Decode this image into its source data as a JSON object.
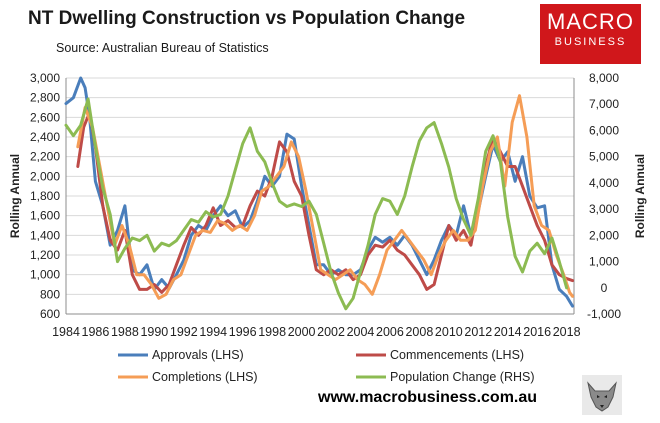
{
  "header": {
    "title": "NT Dwelling Construction vs Population Change",
    "source": "Source: Australian Bureau of Statistics"
  },
  "logo": {
    "line1": "MACRO",
    "line2": "BUSINESS"
  },
  "footer": {
    "website": "www.macrobusiness.com.au"
  },
  "colors": {
    "approvals": "#4a7ebb",
    "commencements": "#be4b48",
    "completions": "#f59d56",
    "population": "#8cbb52",
    "logo_bg": "#d0171b"
  },
  "chart_data": {
    "type": "line",
    "title": "NT Dwelling Construction vs Population Change",
    "ylabel": "Rolling Annual",
    "ylabel_right": "Rolling Annual",
    "ylim": [
      600,
      3000
    ],
    "ylim_right": [
      -1000,
      8000
    ],
    "yticks_left": [
      "3,000",
      "2,800",
      "2,600",
      "2,400",
      "2,200",
      "2,000",
      "1,800",
      "1,600",
      "1,400",
      "1,200",
      "1,000",
      "800",
      "600"
    ],
    "yticks_right": [
      "8,000",
      "7,000",
      "6,000",
      "5,000",
      "4,000",
      "3,000",
      "2,000",
      "1,000",
      "0",
      "-1,000"
    ],
    "xlim": [
      1984,
      2018.5
    ],
    "xticks": [
      "1984",
      "1986",
      "1988",
      "1990",
      "1992",
      "1994",
      "1996",
      "1998",
      "2000",
      "2002",
      "2004",
      "2006",
      "2008",
      "2010",
      "2012",
      "2014",
      "2016",
      "2018"
    ],
    "series": [
      {
        "name": "Approvals (LHS)",
        "axis": "left",
        "key": "approvals",
        "points": [
          [
            1984,
            2740
          ],
          [
            1984.5,
            2800
          ],
          [
            1985,
            3000
          ],
          [
            1985.3,
            2900
          ],
          [
            1985.6,
            2600
          ],
          [
            1986,
            1950
          ],
          [
            1986.5,
            1700
          ],
          [
            1987,
            1300
          ],
          [
            1987.5,
            1450
          ],
          [
            1988,
            1700
          ],
          [
            1988.5,
            1050
          ],
          [
            1989,
            1000
          ],
          [
            1989.5,
            1100
          ],
          [
            1990,
            850
          ],
          [
            1990.5,
            950
          ],
          [
            1991,
            860
          ],
          [
            1991.5,
            1000
          ],
          [
            1992,
            1150
          ],
          [
            1992.5,
            1400
          ],
          [
            1993,
            1500
          ],
          [
            1993.5,
            1450
          ],
          [
            1994,
            1600
          ],
          [
            1994.5,
            1700
          ],
          [
            1995,
            1600
          ],
          [
            1995.5,
            1650
          ],
          [
            1996,
            1480
          ],
          [
            1996.5,
            1550
          ],
          [
            1997,
            1750
          ],
          [
            1997.5,
            2000
          ],
          [
            1998,
            1900
          ],
          [
            1998.5,
            2000
          ],
          [
            1999,
            2430
          ],
          [
            1999.5,
            2380
          ],
          [
            2000,
            1900
          ],
          [
            2000.5,
            1500
          ],
          [
            2001,
            1100
          ],
          [
            2001.5,
            1100
          ],
          [
            2002,
            1000
          ],
          [
            2002.5,
            1050
          ],
          [
            2003,
            1000
          ],
          [
            2003.5,
            1000
          ],
          [
            2004,
            1050
          ],
          [
            2004.5,
            1250
          ],
          [
            2005,
            1380
          ],
          [
            2005.5,
            1330
          ],
          [
            2006,
            1380
          ],
          [
            2006.5,
            1300
          ],
          [
            2007,
            1400
          ],
          [
            2007.5,
            1300
          ],
          [
            2008,
            1150
          ],
          [
            2008.5,
            1000
          ],
          [
            2009,
            1150
          ],
          [
            2009.5,
            1350
          ],
          [
            2010,
            1500
          ],
          [
            2010.5,
            1400
          ],
          [
            2011,
            1700
          ],
          [
            2011.5,
            1400
          ],
          [
            2012,
            1650
          ],
          [
            2012.5,
            2000
          ],
          [
            2013,
            2320
          ],
          [
            2013.5,
            2150
          ],
          [
            2014,
            2250
          ],
          [
            2014.5,
            1950
          ],
          [
            2015,
            2200
          ],
          [
            2015.5,
            1800
          ],
          [
            2016,
            1680
          ],
          [
            2016.5,
            1700
          ],
          [
            2017,
            1100
          ],
          [
            2017.5,
            850
          ],
          [
            2018,
            780
          ],
          [
            2018.4,
            680
          ]
        ]
      },
      {
        "name": "Commencements (LHS)",
        "axis": "left",
        "key": "commencements",
        "points": [
          [
            1984.8,
            2100
          ],
          [
            1985.2,
            2500
          ],
          [
            1985.6,
            2650
          ],
          [
            1986,
            2300
          ],
          [
            1986.5,
            1700
          ],
          [
            1987,
            1350
          ],
          [
            1987.5,
            1250
          ],
          [
            1988,
            1450
          ],
          [
            1988.5,
            1000
          ],
          [
            1989,
            850
          ],
          [
            1989.5,
            850
          ],
          [
            1990,
            900
          ],
          [
            1990.5,
            820
          ],
          [
            1991,
            900
          ],
          [
            1991.5,
            1100
          ],
          [
            1992,
            1300
          ],
          [
            1992.5,
            1480
          ],
          [
            1993,
            1400
          ],
          [
            1993.5,
            1500
          ],
          [
            1994,
            1680
          ],
          [
            1994.5,
            1500
          ],
          [
            1995,
            1550
          ],
          [
            1995.5,
            1480
          ],
          [
            1996,
            1500
          ],
          [
            1996.5,
            1700
          ],
          [
            1997,
            1850
          ],
          [
            1997.5,
            1800
          ],
          [
            1998,
            2000
          ],
          [
            1998.5,
            2350
          ],
          [
            1999,
            2250
          ],
          [
            1999.5,
            1950
          ],
          [
            2000,
            1800
          ],
          [
            2000.5,
            1400
          ],
          [
            2001,
            1050
          ],
          [
            2001.5,
            1000
          ],
          [
            2002,
            1050
          ],
          [
            2002.5,
            1000
          ],
          [
            2003,
            1050
          ],
          [
            2003.5,
            950
          ],
          [
            2004,
            1000
          ],
          [
            2004.5,
            1200
          ],
          [
            2005,
            1300
          ],
          [
            2005.5,
            1280
          ],
          [
            2006,
            1350
          ],
          [
            2006.5,
            1250
          ],
          [
            2007,
            1200
          ],
          [
            2007.5,
            1100
          ],
          [
            2008,
            1000
          ],
          [
            2008.5,
            850
          ],
          [
            2009,
            900
          ],
          [
            2009.5,
            1200
          ],
          [
            2010,
            1500
          ],
          [
            2010.5,
            1350
          ],
          [
            2011,
            1450
          ],
          [
            2011.5,
            1300
          ],
          [
            2012,
            1700
          ],
          [
            2012.5,
            2100
          ],
          [
            2013,
            2400
          ],
          [
            2013.5,
            2250
          ],
          [
            2014,
            2100
          ],
          [
            2014.5,
            2100
          ],
          [
            2015,
            1900
          ],
          [
            2015.5,
            1700
          ],
          [
            2016,
            1500
          ],
          [
            2016.5,
            1350
          ],
          [
            2017,
            1100
          ],
          [
            2017.5,
            1000
          ],
          [
            2018,
            960
          ],
          [
            2018.4,
            940
          ]
        ]
      },
      {
        "name": "Completions (LHS)",
        "axis": "left",
        "key": "completions",
        "points": [
          [
            1984.8,
            2300
          ],
          [
            1985.3,
            2700
          ],
          [
            1985.8,
            2500
          ],
          [
            1986.3,
            2100
          ],
          [
            1986.8,
            1700
          ],
          [
            1987.3,
            1300
          ],
          [
            1987.8,
            1500
          ],
          [
            1988.3,
            1300
          ],
          [
            1988.8,
            1000
          ],
          [
            1989.3,
            1000
          ],
          [
            1989.8,
            900
          ],
          [
            1990.3,
            760
          ],
          [
            1990.8,
            800
          ],
          [
            1991.3,
            950
          ],
          [
            1991.8,
            1000
          ],
          [
            1992.3,
            1200
          ],
          [
            1992.8,
            1400
          ],
          [
            1993.3,
            1450
          ],
          [
            1993.8,
            1430
          ],
          [
            1994.3,
            1550
          ],
          [
            1994.8,
            1520
          ],
          [
            1995.3,
            1450
          ],
          [
            1995.8,
            1500
          ],
          [
            1996.3,
            1450
          ],
          [
            1996.8,
            1600
          ],
          [
            1997.3,
            1850
          ],
          [
            1997.8,
            1900
          ],
          [
            1998.3,
            2000
          ],
          [
            1998.8,
            2100
          ],
          [
            1999.3,
            2350
          ],
          [
            1999.8,
            2200
          ],
          [
            2000.3,
            1850
          ],
          [
            2000.8,
            1450
          ],
          [
            2001.3,
            1050
          ],
          [
            2001.8,
            1000
          ],
          [
            2002.3,
            950
          ],
          [
            2002.8,
            1000
          ],
          [
            2003.3,
            1050
          ],
          [
            2003.8,
            950
          ],
          [
            2004.3,
            900
          ],
          [
            2004.8,
            800
          ],
          [
            2005.3,
            1000
          ],
          [
            2005.8,
            1250
          ],
          [
            2006.3,
            1350
          ],
          [
            2006.8,
            1450
          ],
          [
            2007.3,
            1350
          ],
          [
            2007.8,
            1250
          ],
          [
            2008.3,
            1150
          ],
          [
            2008.8,
            1000
          ],
          [
            2009.3,
            1200
          ],
          [
            2009.8,
            1350
          ],
          [
            2010.3,
            1450
          ],
          [
            2010.8,
            1350
          ],
          [
            2011.3,
            1350
          ],
          [
            2011.8,
            1450
          ],
          [
            2012.3,
            1900
          ],
          [
            2012.8,
            2250
          ],
          [
            2013.3,
            2400
          ],
          [
            2013.8,
            1900
          ],
          [
            2014.3,
            2550
          ],
          [
            2014.8,
            2820
          ],
          [
            2015.3,
            2400
          ],
          [
            2015.8,
            1700
          ],
          [
            2016.3,
            1500
          ],
          [
            2016.8,
            1450
          ],
          [
            2017.3,
            1200
          ],
          [
            2017.8,
            1000
          ],
          [
            2018.2,
            820
          ],
          [
            2018.4,
            780
          ]
        ]
      },
      {
        "name": "Population Change (RHS)",
        "axis": "right",
        "key": "population",
        "points": [
          [
            1984,
            6200
          ],
          [
            1984.5,
            5800
          ],
          [
            1985,
            6200
          ],
          [
            1985.5,
            7200
          ],
          [
            1986,
            5400
          ],
          [
            1986.5,
            3800
          ],
          [
            1987,
            2800
          ],
          [
            1987.5,
            1000
          ],
          [
            1988,
            1500
          ],
          [
            1988.5,
            1900
          ],
          [
            1989,
            1800
          ],
          [
            1989.5,
            2000
          ],
          [
            1990,
            1400
          ],
          [
            1990.5,
            1700
          ],
          [
            1991,
            1600
          ],
          [
            1991.5,
            1800
          ],
          [
            1992,
            2200
          ],
          [
            1992.5,
            2600
          ],
          [
            1993,
            2500
          ],
          [
            1993.5,
            2900
          ],
          [
            1994,
            2700
          ],
          [
            1994.5,
            2800
          ],
          [
            1995,
            3500
          ],
          [
            1995.5,
            4500
          ],
          [
            1996,
            5500
          ],
          [
            1996.5,
            6100
          ],
          [
            1997,
            5200
          ],
          [
            1997.5,
            4800
          ],
          [
            1998,
            4000
          ],
          [
            1998.5,
            3300
          ],
          [
            1999,
            3100
          ],
          [
            1999.5,
            3200
          ],
          [
            2000,
            3100
          ],
          [
            2000.5,
            3300
          ],
          [
            2001,
            2800
          ],
          [
            2001.5,
            1700
          ],
          [
            2002,
            600
          ],
          [
            2002.5,
            -200
          ],
          [
            2003,
            -800
          ],
          [
            2003.5,
            -400
          ],
          [
            2004,
            600
          ],
          [
            2004.5,
            1600
          ],
          [
            2005,
            2800
          ],
          [
            2005.5,
            3400
          ],
          [
            2006,
            3300
          ],
          [
            2006.5,
            2800
          ],
          [
            2007,
            3500
          ],
          [
            2007.5,
            4600
          ],
          [
            2008,
            5600
          ],
          [
            2008.5,
            6100
          ],
          [
            2009,
            6300
          ],
          [
            2009.5,
            5500
          ],
          [
            2010,
            4600
          ],
          [
            2010.5,
            3400
          ],
          [
            2011,
            2600
          ],
          [
            2011.5,
            2000
          ],
          [
            2012,
            3400
          ],
          [
            2012.5,
            5200
          ],
          [
            2013,
            5800
          ],
          [
            2013.5,
            4800
          ],
          [
            2014,
            2700
          ],
          [
            2014.5,
            1200
          ],
          [
            2015,
            600
          ],
          [
            2015.5,
            1400
          ],
          [
            2016,
            1700
          ],
          [
            2016.5,
            1300
          ],
          [
            2017,
            1900
          ],
          [
            2017.5,
            1000
          ],
          [
            2018,
            0
          ]
        ]
      }
    ],
    "legend": {
      "position": "bottom"
    }
  }
}
